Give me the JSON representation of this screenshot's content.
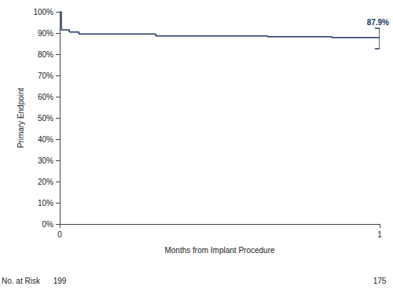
{
  "chart_data": {
    "type": "line",
    "y_label": "Primary Endpoint",
    "x_label": "Months from Implant Procedure",
    "x": [
      0,
      0.005,
      0.03,
      0.06,
      0.3,
      0.65,
      0.85,
      1
    ],
    "values": [
      100,
      91.5,
      90.5,
      89.5,
      88.6,
      88.2,
      87.9,
      87.9
    ],
    "line_style": "step",
    "color": "#203864",
    "xlim": [
      0,
      1
    ],
    "xticks": [
      0,
      1
    ],
    "ylim": [
      0,
      100
    ],
    "yticks": [
      {
        "value": 0,
        "label": "0%"
      },
      {
        "value": 10,
        "label": "10%"
      },
      {
        "value": 20,
        "label": "20%"
      },
      {
        "value": 30,
        "label": "30%"
      },
      {
        "value": 40,
        "label": "40%"
      },
      {
        "value": 50,
        "label": "50%"
      },
      {
        "value": 60,
        "label": "60%"
      },
      {
        "value": 70,
        "label": "70%"
      },
      {
        "value": 80,
        "label": "80%"
      },
      {
        "value": 90,
        "label": "90%"
      },
      {
        "value": 100,
        "label": "100%"
      }
    ],
    "grid": false,
    "annotations": [
      {
        "text": "87.9%",
        "x": 1,
        "y": 87.9
      }
    ],
    "error_bar": {
      "x": 1,
      "low": 82.6,
      "high": 92.2
    },
    "risk_table": {
      "label": "No. at Risk",
      "x": [
        0,
        1
      ],
      "values": [
        199,
        175
      ]
    }
  }
}
